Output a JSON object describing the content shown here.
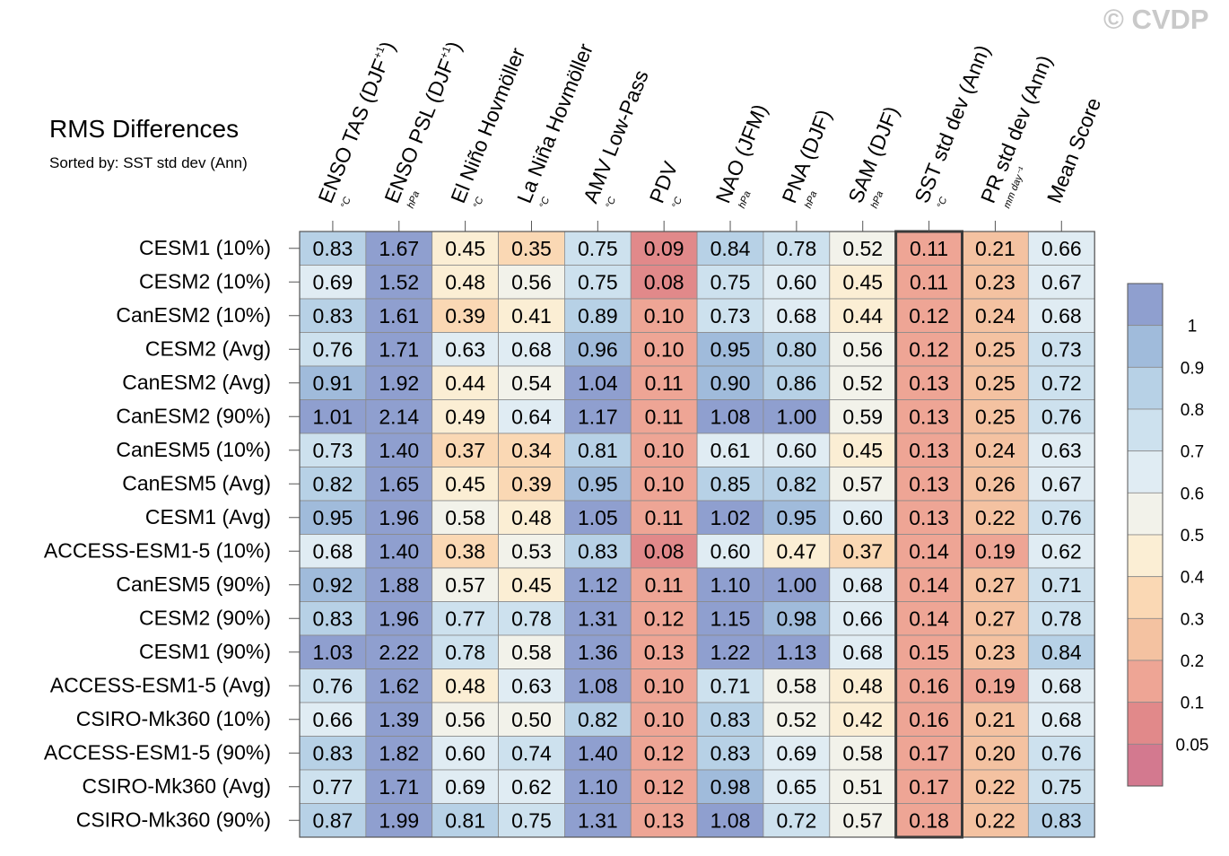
{
  "watermark": "© CVDP",
  "chart_data": {
    "type": "table",
    "title": "RMS Differences",
    "subtitle": "Sorted by: SST std dev (Ann)",
    "columns": [
      {
        "name": "ENSO TAS (DJF",
        "sup": "+1",
        "close": ")",
        "unit": "°C"
      },
      {
        "name": "ENSO PSL (DJF",
        "sup": "+1",
        "close": ")",
        "unit": "hPa"
      },
      {
        "name": "El Niño Hovmöller",
        "sup": "",
        "close": "",
        "unit": "°C"
      },
      {
        "name": "La Niña Hovmöller",
        "sup": "",
        "close": "",
        "unit": "°C"
      },
      {
        "name": "AMV Low-Pass",
        "sup": "",
        "close": "",
        "unit": "°C"
      },
      {
        "name": "PDV",
        "sup": "",
        "close": "",
        "unit": "°C"
      },
      {
        "name": "NAO (JFM)",
        "sup": "",
        "close": "",
        "unit": "hPa"
      },
      {
        "name": "PNA (DJF)",
        "sup": "",
        "close": "",
        "unit": "hPa"
      },
      {
        "name": "SAM (DJF)",
        "sup": "",
        "close": "",
        "unit": "hPa"
      },
      {
        "name": "SST std dev (Ann)",
        "sup": "",
        "close": "",
        "unit": "°C"
      },
      {
        "name": "PR std dev (Ann)",
        "sup": "",
        "close": "",
        "unit": "mm day⁻¹"
      },
      {
        "name": "Mean Score",
        "sup": "",
        "close": "",
        "unit": ""
      }
    ],
    "rows": [
      {
        "label": "CESM1 (10%)",
        "values": [
          0.83,
          1.67,
          0.45,
          0.35,
          0.75,
          0.09,
          0.84,
          0.78,
          0.52,
          0.11,
          0.21,
          0.66
        ]
      },
      {
        "label": "CESM2 (10%)",
        "values": [
          0.69,
          1.52,
          0.48,
          0.56,
          0.75,
          0.08,
          0.75,
          0.6,
          0.45,
          0.11,
          0.23,
          0.67
        ]
      },
      {
        "label": "CanESM2 (10%)",
        "values": [
          0.83,
          1.61,
          0.39,
          0.41,
          0.89,
          0.1,
          0.73,
          0.68,
          0.44,
          0.12,
          0.24,
          0.68
        ]
      },
      {
        "label": "CESM2 (Avg)",
        "values": [
          0.76,
          1.71,
          0.63,
          0.68,
          0.96,
          0.1,
          0.95,
          0.8,
          0.56,
          0.12,
          0.25,
          0.73
        ]
      },
      {
        "label": "CanESM2 (Avg)",
        "values": [
          0.91,
          1.92,
          0.44,
          0.54,
          1.04,
          0.11,
          0.9,
          0.86,
          0.52,
          0.13,
          0.25,
          0.72
        ]
      },
      {
        "label": "CanESM2 (90%)",
        "values": [
          1.01,
          2.14,
          0.49,
          0.64,
          1.17,
          0.11,
          1.08,
          1.0,
          0.59,
          0.13,
          0.25,
          0.76
        ]
      },
      {
        "label": "CanESM5 (10%)",
        "values": [
          0.73,
          1.4,
          0.37,
          0.34,
          0.81,
          0.1,
          0.61,
          0.6,
          0.45,
          0.13,
          0.24,
          0.63
        ]
      },
      {
        "label": "CanESM5 (Avg)",
        "values": [
          0.82,
          1.65,
          0.45,
          0.39,
          0.95,
          0.1,
          0.85,
          0.82,
          0.57,
          0.13,
          0.26,
          0.67
        ]
      },
      {
        "label": "CESM1 (Avg)",
        "values": [
          0.95,
          1.96,
          0.58,
          0.48,
          1.05,
          0.11,
          1.02,
          0.95,
          0.6,
          0.13,
          0.22,
          0.76
        ]
      },
      {
        "label": "ACCESS-ESM1-5 (10%)",
        "values": [
          0.68,
          1.4,
          0.38,
          0.53,
          0.83,
          0.08,
          0.6,
          0.47,
          0.37,
          0.14,
          0.19,
          0.62
        ]
      },
      {
        "label": "CanESM5 (90%)",
        "values": [
          0.92,
          1.88,
          0.57,
          0.45,
          1.12,
          0.11,
          1.1,
          1.0,
          0.68,
          0.14,
          0.27,
          0.71
        ]
      },
      {
        "label": "CESM2 (90%)",
        "values": [
          0.83,
          1.96,
          0.77,
          0.78,
          1.31,
          0.12,
          1.15,
          0.98,
          0.66,
          0.14,
          0.27,
          0.78
        ]
      },
      {
        "label": "CESM1 (90%)",
        "values": [
          1.03,
          2.22,
          0.78,
          0.58,
          1.36,
          0.13,
          1.22,
          1.13,
          0.68,
          0.15,
          0.23,
          0.84
        ]
      },
      {
        "label": "ACCESS-ESM1-5 (Avg)",
        "values": [
          0.76,
          1.62,
          0.48,
          0.63,
          1.08,
          0.1,
          0.71,
          0.58,
          0.48,
          0.16,
          0.19,
          0.68
        ]
      },
      {
        "label": "CSIRO-Mk360 (10%)",
        "values": [
          0.66,
          1.39,
          0.56,
          0.5,
          0.82,
          0.1,
          0.83,
          0.52,
          0.42,
          0.16,
          0.21,
          0.68
        ]
      },
      {
        "label": "ACCESS-ESM1-5 (90%)",
        "values": [
          0.83,
          1.82,
          0.6,
          0.74,
          1.4,
          0.12,
          0.83,
          0.69,
          0.58,
          0.17,
          0.2,
          0.76
        ]
      },
      {
        "label": "CSIRO-Mk360 (Avg)",
        "values": [
          0.77,
          1.71,
          0.69,
          0.62,
          1.1,
          0.12,
          0.98,
          0.65,
          0.51,
          0.17,
          0.22,
          0.75
        ]
      },
      {
        "label": "CSIRO-Mk360 (90%)",
        "values": [
          0.87,
          1.99,
          0.81,
          0.75,
          1.31,
          0.13,
          1.08,
          0.72,
          0.57,
          0.18,
          0.22,
          0.83
        ]
      }
    ],
    "highlighted_column": "SST std dev (Ann)",
    "colorbar": {
      "levels": [
        0.05,
        0.1,
        0.2,
        0.3,
        0.4,
        0.5,
        0.6,
        0.7,
        0.8,
        0.9,
        1
      ],
      "labels": [
        "1",
        "0.9",
        "0.8",
        "0.7",
        "0.6",
        "0.5",
        "0.4",
        "0.3",
        "0.2",
        "0.1",
        "0.05"
      ],
      "colors": [
        "#d3798f",
        "#e1898a",
        "#eea595",
        "#f4c2a1",
        "#fad8b4",
        "#fbeed4",
        "#f2f2ea",
        "#e0ecf3",
        "#cde1ee",
        "#b7d1e6",
        "#a0bbdb",
        "#8f9fcf"
      ]
    }
  }
}
